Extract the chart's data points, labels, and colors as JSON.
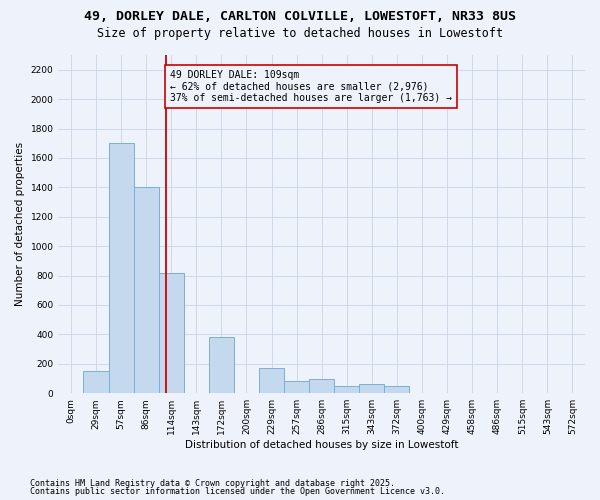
{
  "title_line1": "49, DORLEY DALE, CARLTON COLVILLE, LOWESTOFT, NR33 8US",
  "title_line2": "Size of property relative to detached houses in Lowestoft",
  "xlabel": "Distribution of detached houses by size in Lowestoft",
  "ylabel": "Number of detached properties",
  "bar_color": "#c5d9ee",
  "bar_edge_color": "#7aafd4",
  "background_color": "#eef2fa",
  "grid_color": "#c8d4e8",
  "annotation_box_color": "#cc0000",
  "vline_color": "#cc0000",
  "annotation_text": "49 DORLEY DALE: 109sqm\n← 62% of detached houses are smaller (2,976)\n37% of semi-detached houses are larger (1,763) →",
  "annotation_fontsize": 7.0,
  "categories": [
    "0sqm",
    "29sqm",
    "57sqm",
    "86sqm",
    "114sqm",
    "143sqm",
    "172sqm",
    "200sqm",
    "229sqm",
    "257sqm",
    "286sqm",
    "315sqm",
    "343sqm",
    "372sqm",
    "400sqm",
    "429sqm",
    "458sqm",
    "486sqm",
    "515sqm",
    "543sqm",
    "572sqm"
  ],
  "n_bins": 21,
  "vline_bin": 3.8,
  "values": [
    0,
    150,
    1700,
    1400,
    820,
    0,
    380,
    0,
    170,
    80,
    100,
    50,
    60,
    50,
    0,
    0,
    0,
    0,
    0,
    0,
    0
  ],
  "ylim": [
    0,
    2300
  ],
  "yticks": [
    0,
    200,
    400,
    600,
    800,
    1000,
    1200,
    1400,
    1600,
    1800,
    2000,
    2200
  ],
  "footer_line1": "Contains HM Land Registry data © Crown copyright and database right 2025.",
  "footer_line2": "Contains public sector information licensed under the Open Government Licence v3.0.",
  "title_fontsize": 9.5,
  "subtitle_fontsize": 8.5,
  "axis_label_fontsize": 7.5,
  "tick_fontsize": 6.5,
  "footer_fontsize": 6.0
}
